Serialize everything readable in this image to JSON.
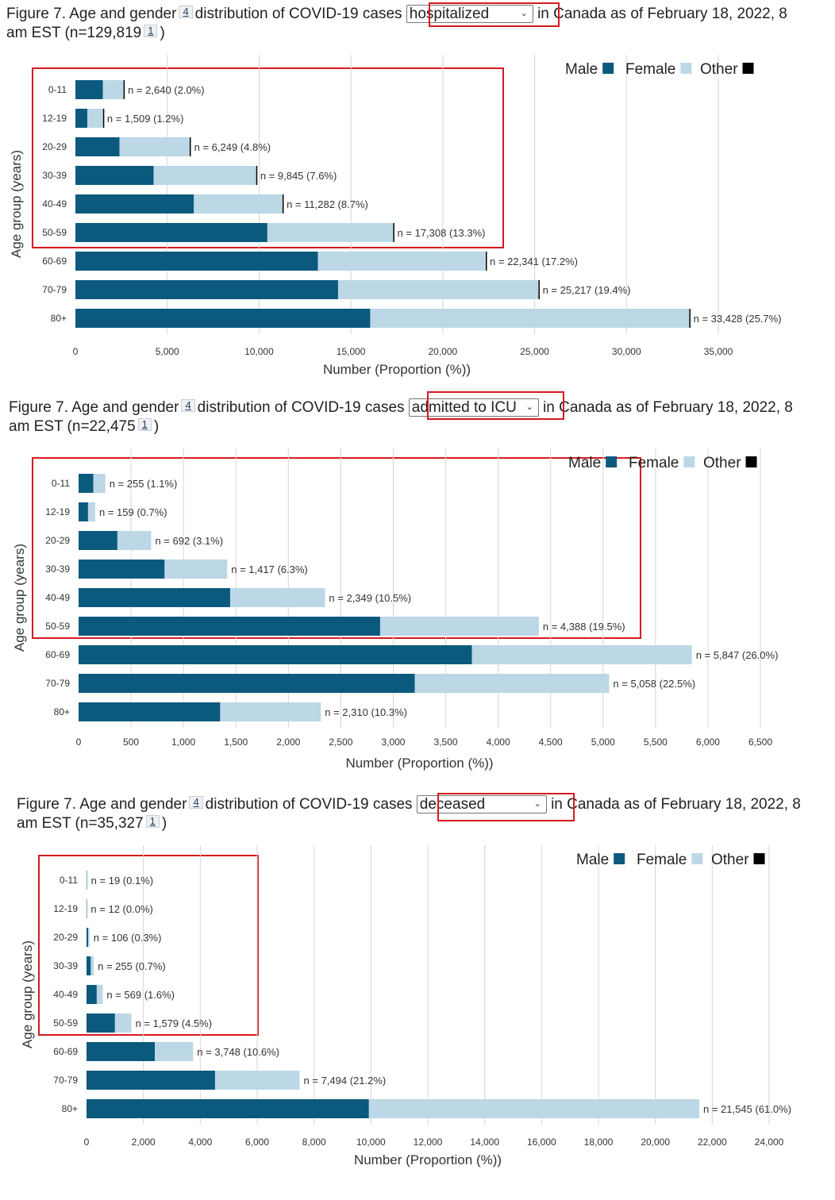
{
  "figures": [
    {
      "title_before": "Figure 7. Age and gender",
      "footnote_a": "4",
      "title_mid": "distribution of COVID-19 cases",
      "selected": "hospitalized",
      "title_after": "in Canada as of February 18, 2022, 8",
      "line2": "am EST (n=129,819",
      "footnote_b": "1",
      "line2_end": ")",
      "legend": [
        "Male",
        "Female",
        "Other"
      ],
      "ylabel": "Age group (years)",
      "xlabel": "Number (Proportion (%))"
    },
    {
      "title_before": "Figure 7. Age and gender",
      "footnote_a": "4",
      "title_mid": "distribution of COVID-19 cases",
      "selected": "admitted to ICU",
      "title_after": "in Canada as of February 18, 2022, 8",
      "line2": "am EST (n=22,475",
      "footnote_b": "1",
      "line2_end": ")",
      "legend": [
        "Male",
        "Female",
        "Other"
      ],
      "ylabel": "Age group (years)",
      "xlabel": "Number (Proportion (%))"
    },
    {
      "title_before": "Figure 7. Age and gender",
      "footnote_a": "4",
      "title_mid": "distribution of COVID-19 cases",
      "selected": "deceased",
      "title_after": "in Canada as of February 18, 2022, 8",
      "line2": "am EST (n=35,327",
      "footnote_b": "1",
      "line2_end": ")",
      "legend": [
        "Male",
        "Female",
        "Other"
      ],
      "ylabel": "Age group (years)",
      "xlabel": "Number (Proportion (%))"
    }
  ],
  "colors": {
    "male": "#0b5a7e",
    "female": "#bcd7e6",
    "other": "#000000",
    "grid": "#d6d6d6",
    "highlight": "#d71920"
  },
  "chart_data": [
    {
      "type": "bar",
      "orientation": "horizontal",
      "stacked": true,
      "categories": [
        "0-11",
        "12-19",
        "20-29",
        "30-39",
        "40-49",
        "50-59",
        "60-69",
        "70-79",
        "80+"
      ],
      "series": [
        {
          "name": "Male",
          "values": [
            1500,
            650,
            2400,
            4260,
            6450,
            10450,
            13200,
            14300,
            16050
          ]
        },
        {
          "name": "Female",
          "values": [
            1120,
            855,
            3820,
            5580,
            4825,
            6850,
            9140,
            10910,
            17370
          ]
        },
        {
          "name": "Other",
          "values": [
            20,
            4,
            29,
            5,
            7,
            8,
            1,
            7,
            8
          ]
        }
      ],
      "bar_labels": [
        "n = 2,640 (2.0%)",
        "n = 1,509 (1.2%)",
        "n = 6,249 (4.8%)",
        "n = 9,845 (7.6%)",
        "n = 11,282 (8.7%)",
        "n = 17,308 (13.3%)",
        "n = 22,341 (17.2%)",
        "n = 25,217 (19.4%)",
        "n = 33,428 (25.7%)"
      ],
      "xticks": [
        "0",
        "5,000",
        "10,000",
        "15,000",
        "20,000",
        "25,000",
        "30,000",
        "35,000"
      ],
      "xlim": [
        0,
        35000
      ],
      "ylabel": "Age group (years)",
      "xlabel": "Number (Proportion (%))",
      "legend": [
        "Male",
        "Female",
        "Other"
      ],
      "legend_position": "top-right",
      "grid": true
    },
    {
      "type": "bar",
      "orientation": "horizontal",
      "stacked": true,
      "categories": [
        "0-11",
        "12-19",
        "20-29",
        "30-39",
        "40-49",
        "50-59",
        "60-69",
        "70-79",
        "80+"
      ],
      "series": [
        {
          "name": "Male",
          "values": [
            140,
            90,
            370,
            820,
            1445,
            2875,
            3750,
            3205,
            1350
          ]
        },
        {
          "name": "Female",
          "values": [
            115,
            69,
            322,
            597,
            904,
            1513,
            2097,
            1853,
            960
          ]
        },
        {
          "name": "Other",
          "values": [
            0,
            0,
            0,
            0,
            0,
            0,
            0,
            0,
            0
          ]
        }
      ],
      "bar_labels": [
        "n = 255 (1.1%)",
        "n = 159 (0.7%)",
        "n = 692 (3.1%)",
        "n = 1,417 (6.3%)",
        "n = 2,349 (10.5%)",
        "n = 4,388 (19.5%)",
        "n = 5,847 (26.0%)",
        "n = 5,058 (22.5%)",
        "n = 2,310 (10.3%)"
      ],
      "xticks": [
        "0",
        "500",
        "1,000",
        "1,500",
        "2,000",
        "2,500",
        "3,000",
        "3,500",
        "4,000",
        "4,500",
        "5,000",
        "5,500",
        "6,000",
        "6,500"
      ],
      "xlim": [
        0,
        6500
      ],
      "ylabel": "Age group (years)",
      "xlabel": "Number (Proportion (%))",
      "legend": [
        "Male",
        "Female",
        "Other"
      ],
      "legend_position": "top-right",
      "grid": true
    },
    {
      "type": "bar",
      "orientation": "horizontal",
      "stacked": true,
      "categories": [
        "0-11",
        "12-19",
        "20-29",
        "30-39",
        "40-49",
        "50-59",
        "60-69",
        "70-79",
        "80+"
      ],
      "series": [
        {
          "name": "Male",
          "values": [
            9,
            7,
            60,
            150,
            360,
            1000,
            2400,
            4520,
            9930
          ]
        },
        {
          "name": "Female",
          "values": [
            10,
            5,
            46,
            105,
            209,
            579,
            1348,
            2974,
            11615
          ]
        },
        {
          "name": "Other",
          "values": [
            0,
            0,
            0,
            0,
            0,
            0,
            0,
            0,
            0
          ]
        }
      ],
      "bar_labels": [
        "n = 19 (0.1%)",
        "n = 12 (0.0%)",
        "n = 106 (0.3%)",
        "n = 255 (0.7%)",
        "n = 569 (1.6%)",
        "n = 1,579 (4.5%)",
        "n = 3,748 (10.6%)",
        "n = 7,494 (21.2%)",
        "n = 21,545 (61.0%)"
      ],
      "xticks": [
        "0",
        "2,000",
        "4,000",
        "6,000",
        "8,000",
        "10,000",
        "12,000",
        "14,000",
        "16,000",
        "18,000",
        "20,000",
        "22,000",
        "24,000"
      ],
      "xlim": [
        0,
        24000
      ],
      "ylabel": "Age group (years)",
      "xlabel": "Number (Proportion (%))",
      "legend": [
        "Male",
        "Female",
        "Other"
      ],
      "legend_position": "top-right",
      "grid": true
    }
  ]
}
